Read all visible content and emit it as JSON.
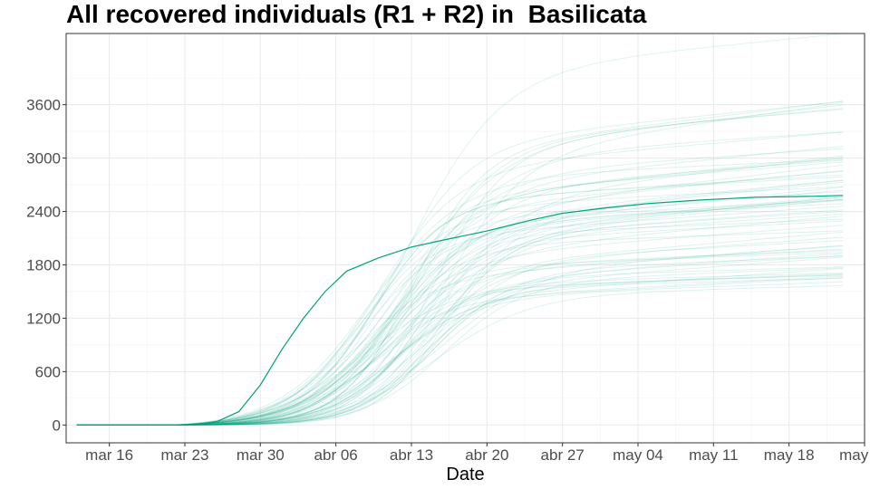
{
  "chart_data": {
    "type": "line",
    "title": "All recovered individuals (R1 + R2) in  Basilicata",
    "xlabel": "Date",
    "ylabel": "",
    "x_start": "2020-03-12",
    "x_end": "2020-05-25",
    "x_ticks": [
      {
        "date": "2020-03-16",
        "label": "mar 16"
      },
      {
        "date": "2020-03-23",
        "label": "mar 23"
      },
      {
        "date": "2020-03-30",
        "label": "mar 30"
      },
      {
        "date": "2020-04-06",
        "label": "abr 06"
      },
      {
        "date": "2020-04-13",
        "label": "abr 13"
      },
      {
        "date": "2020-04-20",
        "label": "abr 20"
      },
      {
        "date": "2020-04-27",
        "label": "abr 27"
      },
      {
        "date": "2020-05-04",
        "label": "may 04"
      },
      {
        "date": "2020-05-11",
        "label": "may 11"
      },
      {
        "date": "2020-05-18",
        "label": "may 18"
      },
      {
        "date": "2020-05-25",
        "label": "may 25"
      }
    ],
    "y_ticks": [
      0,
      600,
      1200,
      1800,
      2400,
      3000,
      3600
    ],
    "ylim": [
      -200,
      4400
    ],
    "grid": true,
    "line_color": "#00a37a",
    "main_series": {
      "x": [
        "2020-03-13",
        "2020-03-20",
        "2020-03-24",
        "2020-03-26",
        "2020-03-28",
        "2020-03-30",
        "2020-04-01",
        "2020-04-03",
        "2020-04-05",
        "2020-04-07",
        "2020-04-10",
        "2020-04-13",
        "2020-04-16",
        "2020-04-20",
        "2020-04-24",
        "2020-04-27",
        "2020-05-01",
        "2020-05-05",
        "2020-05-10",
        "2020-05-15",
        "2020-05-20",
        "2020-05-23"
      ],
      "y": [
        0,
        0,
        5,
        40,
        150,
        450,
        850,
        1200,
        1500,
        1730,
        1880,
        2000,
        2080,
        2180,
        2300,
        2380,
        2440,
        2490,
        2530,
        2560,
        2570,
        2580
      ]
    },
    "ensemble": {
      "count": 70,
      "plateau_min": 1350,
      "plateau_max": 3950,
      "start_date": "2020-03-13",
      "end_date": "2020-05-23"
    }
  }
}
